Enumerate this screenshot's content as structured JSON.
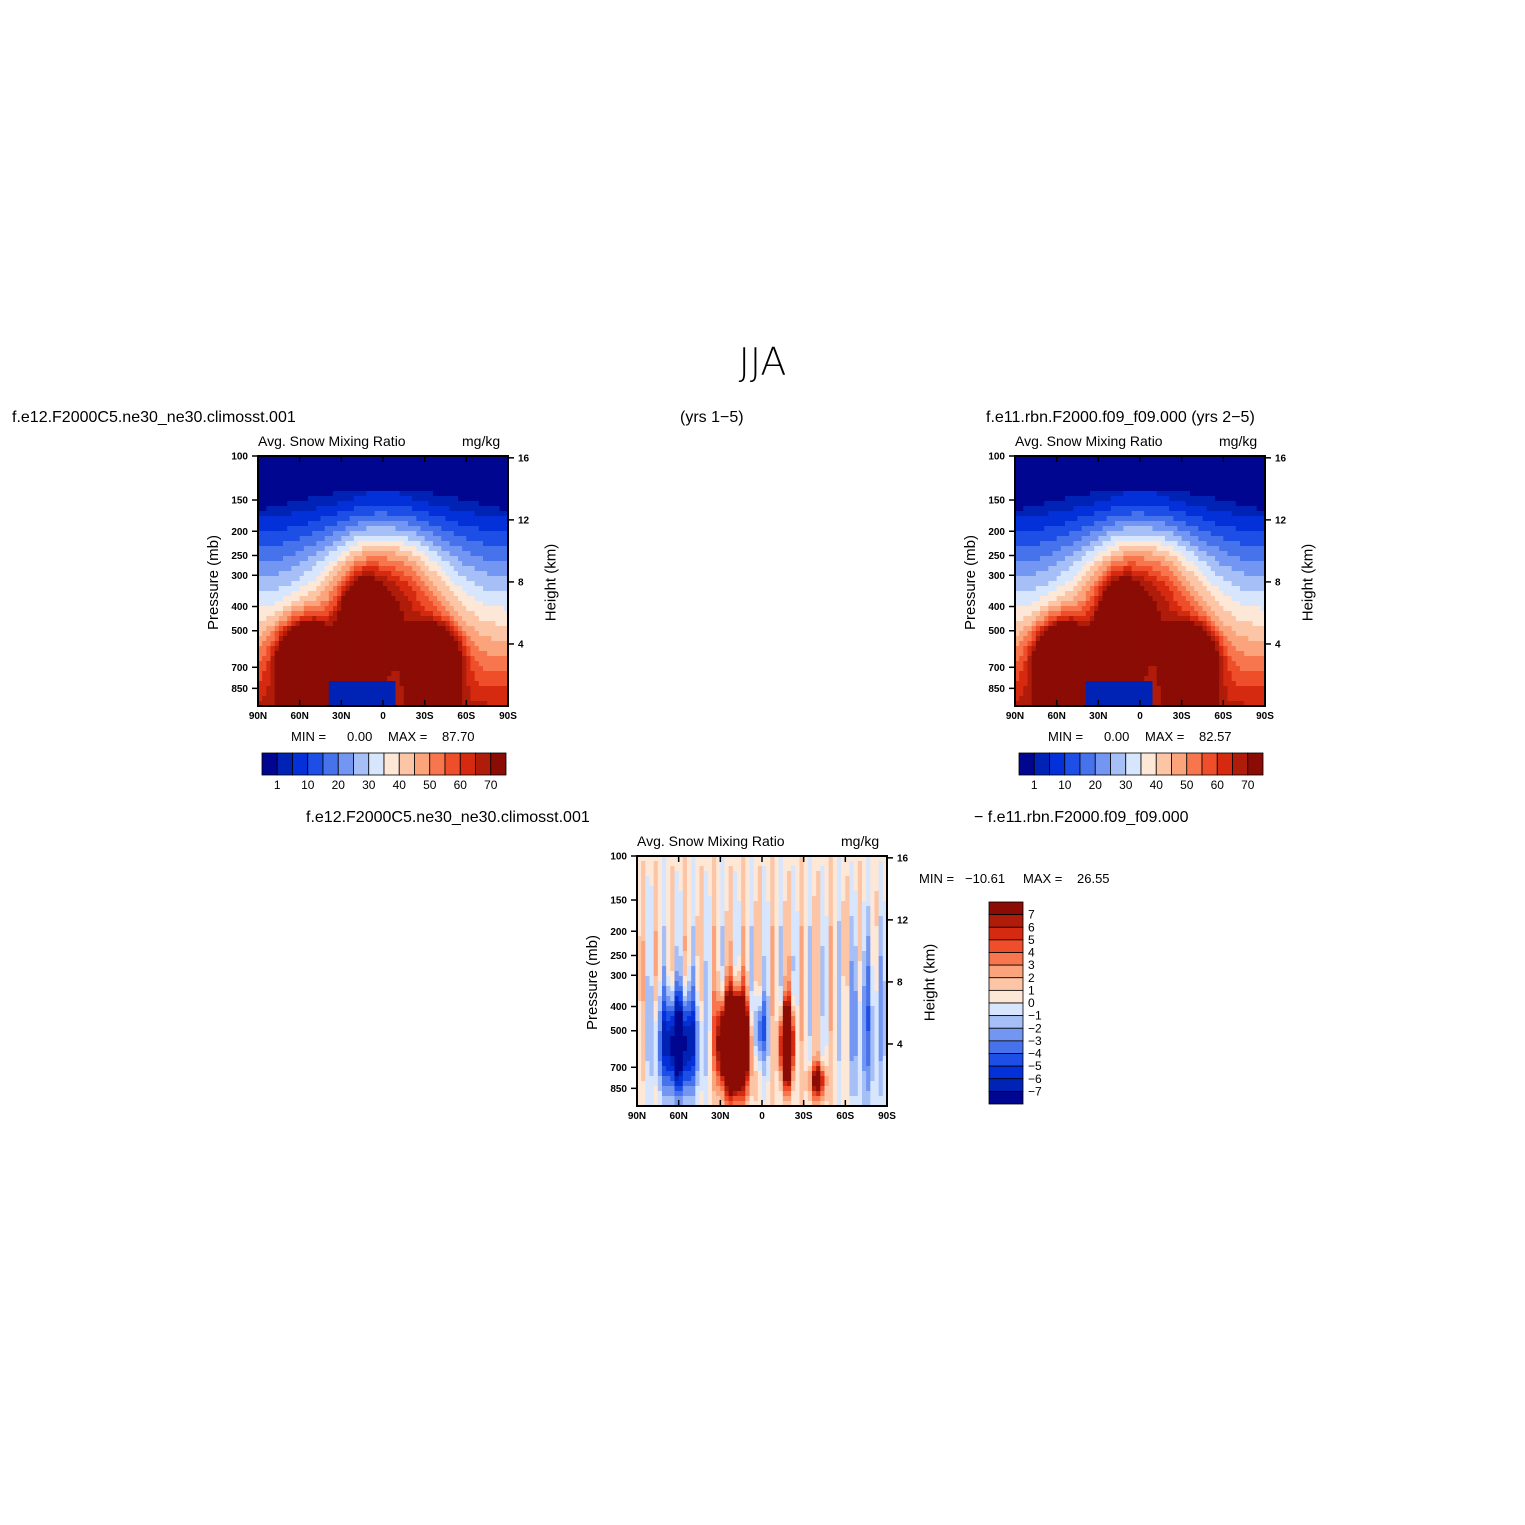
{
  "title": "JJA",
  "header": {
    "case1": "f.e12.F2000C5.ne30_ne30.climosst.001",
    "years1": "(yrs 1−5)",
    "case2": "f.e11.rbn.F2000.f09_f09.000  (yrs 2−5)",
    "diff_case1": "f.e12.F2000C5.ne30_ne30.climosst.001",
    "diff_case2": "−  f.e11.rbn.F2000.f09_f09.000"
  },
  "chart_data": [
    {
      "type": "heatmap",
      "id": "panel1",
      "title": "Avg. Snow Mixing Ratio",
      "units": "mg/kg",
      "xlabel": "",
      "ylabel": "Pressure (mb)",
      "y2label": "Height (km)",
      "x_ticks": [
        "90N",
        "60N",
        "30N",
        "0",
        "30S",
        "60S",
        "90S"
      ],
      "y_ticks": [
        "100",
        "150",
        "200",
        "250",
        "300",
        "400",
        "500",
        "700",
        "850"
      ],
      "y2_ticks": [
        "16",
        "12",
        "8",
        "4"
      ],
      "min_label": "MIN =",
      "min_value": "0.00",
      "max_label": "MAX =",
      "max_value": "87.70",
      "colorbar": {
        "orientation": "horizontal",
        "labels": [
          "1",
          "10",
          "20",
          "30",
          "40",
          "50",
          "60",
          "70"
        ],
        "colors": [
          "#00068f",
          "#0023b5",
          "#0330d8",
          "#1d4ee6",
          "#4672ec",
          "#7396f2",
          "#a6bff7",
          "#d7e6fd",
          "#fde7d6",
          "#fcc5a5",
          "#fba37a",
          "#f7764d",
          "#ef4e2b",
          "#d52a10",
          "#b01c0a",
          "#8b0b05"
        ]
      }
    },
    {
      "type": "heatmap",
      "id": "panel2",
      "title": "Avg. Snow Mixing Ratio",
      "units": "mg/kg",
      "xlabel": "",
      "ylabel": "Pressure (mb)",
      "y2label": "Height (km)",
      "x_ticks": [
        "90N",
        "60N",
        "30N",
        "0",
        "30S",
        "60S",
        "90S"
      ],
      "y_ticks": [
        "100",
        "150",
        "200",
        "250",
        "300",
        "400",
        "500",
        "700",
        "850"
      ],
      "y2_ticks": [
        "16",
        "12",
        "8",
        "4"
      ],
      "min_label": "MIN =",
      "min_value": "0.00",
      "max_label": "MAX =",
      "max_value": "82.57",
      "colorbar": {
        "orientation": "horizontal",
        "labels": [
          "1",
          "10",
          "20",
          "30",
          "40",
          "50",
          "60",
          "70"
        ],
        "colors": [
          "#00068f",
          "#0023b5",
          "#0330d8",
          "#1d4ee6",
          "#4672ec",
          "#7396f2",
          "#a6bff7",
          "#d7e6fd",
          "#fde7d6",
          "#fcc5a5",
          "#fba37a",
          "#f7764d",
          "#ef4e2b",
          "#d52a10",
          "#b01c0a",
          "#8b0b05"
        ]
      }
    },
    {
      "type": "heatmap",
      "id": "diff",
      "title": "Avg. Snow Mixing Ratio",
      "units": "mg/kg",
      "xlabel": "",
      "ylabel": "Pressure (mb)",
      "y2label": "Height (km)",
      "x_ticks": [
        "90N",
        "60N",
        "30N",
        "0",
        "30S",
        "60S",
        "90S"
      ],
      "y_ticks": [
        "100",
        "150",
        "200",
        "250",
        "300",
        "400",
        "500",
        "700",
        "850"
      ],
      "y2_ticks": [
        "16",
        "12",
        "8",
        "4"
      ],
      "min_label": "MIN =",
      "min_value": "−10.61",
      "max_label": "MAX =",
      "max_value": "26.55",
      "colorbar": {
        "orientation": "vertical",
        "labels": [
          "7",
          "6",
          "5",
          "4",
          "3",
          "2",
          "1",
          "0",
          "−1",
          "−2",
          "−3",
          "−4",
          "−5",
          "−6",
          "−7"
        ],
        "colors": [
          "#8b0b05",
          "#b01c0a",
          "#d52a10",
          "#ef4e2b",
          "#f7764d",
          "#fba37a",
          "#fcc5a5",
          "#fde7d6",
          "#d7e6fd",
          "#a6bff7",
          "#7396f2",
          "#4672ec",
          "#1d4ee6",
          "#0330d8",
          "#0023b5",
          "#00068f"
        ]
      }
    }
  ]
}
